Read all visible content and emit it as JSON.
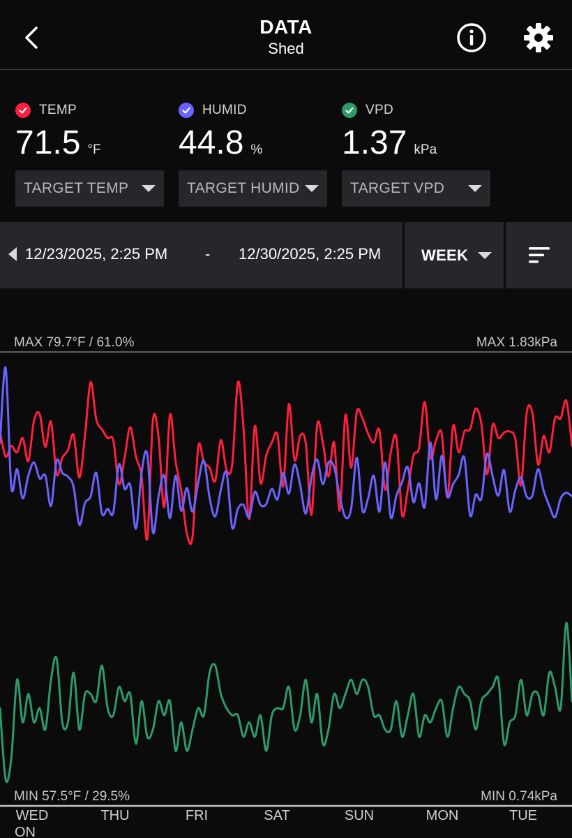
{
  "header": {
    "title": "DATA",
    "subtitle": "Shed",
    "back_icon": "chevron-left-icon",
    "info_icon": "info-icon",
    "settings_icon": "gear-icon"
  },
  "metrics": [
    {
      "label": "TEMP",
      "value": "71.5",
      "unit": "°F",
      "color": "#ff1f3d",
      "checked": true,
      "target_label": "TARGET TEMP"
    },
    {
      "label": "HUMID",
      "value": "44.8",
      "unit": "%",
      "color": "#6b63ff",
      "checked": true,
      "target_label": "TARGET HUMID"
    },
    {
      "label": "VPD",
      "value": "1.37",
      "unit": "kPa",
      "color": "#2e9a6a",
      "checked": true,
      "target_label": "TARGET VPD"
    }
  ],
  "range": {
    "start": "12/23/2025, 2:25 PM",
    "separator": "-",
    "end": "12/30/2025, 2:25 PM",
    "period": "WEEK",
    "sort_icon": "sort-icon"
  },
  "chart_labels": {
    "max_left": "MAX 79.7°F / 61.0%",
    "max_right": "MAX 1.83kPa",
    "min_left": "MIN 57.5°F / 29.5%",
    "min_right": "MIN 0.74kPa"
  },
  "days": [
    "WED",
    "THU",
    "FRI",
    "SAT",
    "SUN",
    "MON",
    "TUE"
  ],
  "day_overflow": "ON",
  "chart_data": {
    "type": "line",
    "x_labels": [
      "WED",
      "THU",
      "FRI",
      "SAT",
      "SUN",
      "MON",
      "TUE"
    ],
    "left_axis": {
      "temp_range_f": [
        57.5,
        79.7
      ],
      "humid_range_pct": [
        29.5,
        61.0
      ]
    },
    "right_axis": {
      "vpd_range_kpa": [
        0.74,
        1.83
      ]
    },
    "series": [
      {
        "name": "TEMP",
        "unit": "°F",
        "color": "#ff1f3d",
        "values": [
          72.8,
          70.5,
          71.5,
          70.9,
          72.2,
          70.1,
          73.8,
          74.4,
          71.4,
          73.7,
          68.9,
          70.4,
          71.1,
          72.5,
          68.6,
          72.4,
          77.3,
          73.9,
          73.0,
          72.2,
          72.0,
          68.0,
          70.4,
          73.2,
          70.5,
          68.7,
          63.0,
          73.8,
          72.3,
          65.9,
          74.3,
          70.1,
          67.4,
          63.5,
          63.2,
          71.4,
          70.0,
          69.5,
          68.3,
          72.0,
          69.3,
          69.8,
          77.3,
          73.1,
          64.8,
          73.3,
          68.1,
          70.6,
          71.8,
          72.5,
          67.8,
          75.3,
          70.2,
          72.4,
          71.7,
          65.2,
          73.4,
          71.8,
          68.7,
          71.8,
          65.6,
          74.3,
          69.5,
          74.6,
          74.0,
          72.6,
          71.8,
          72.9,
          67.5,
          70.9,
          72.2,
          65.2,
          67.5,
          70.6,
          71.3,
          75.5,
          70.4,
          72.0,
          72.6,
          66.8,
          73.3,
          70.9,
          72.8,
          73.0,
          74.9,
          73.5,
          68.9,
          73.4,
          72.2,
          72.7,
          72.8,
          72.1,
          67.9,
          74.5,
          74.5,
          69.8,
          72.4,
          70.9,
          74.0,
          74.0,
          75.6,
          71.5
        ]
      },
      {
        "name": "HUMID",
        "unit": "%",
        "color": "#6b63ff",
        "values": [
          50.5,
          58.4,
          45.8,
          47.7,
          44.6,
          47.0,
          48.4,
          46.7,
          47.0,
          43.8,
          48.6,
          47.3,
          46.9,
          45.8,
          41.8,
          44.1,
          44.8,
          47.3,
          43.0,
          43.5,
          43.1,
          48.2,
          45.6,
          46.0,
          41.4,
          47.3,
          49.3,
          41.0,
          44.8,
          47.0,
          42.5,
          47.0,
          43.3,
          45.7,
          43.2,
          46.3,
          48.6,
          44.7,
          42.7,
          45.5,
          47.3,
          41.5,
          43.5,
          43.9,
          42.6,
          45.3,
          43.9,
          44.0,
          45.6,
          44.5,
          47.3,
          45.1,
          48.2,
          46.0,
          43.0,
          46.8,
          48.7,
          46.1,
          48.4,
          47.9,
          44.8,
          42.6,
          43.5,
          48.9,
          43.3,
          44.6,
          47.0,
          43.2,
          48.4,
          42.6,
          44.9,
          46.3,
          47.9,
          44.2,
          46.2,
          43.7,
          50.5,
          44.5,
          49.1,
          44.8,
          46.1,
          47.1,
          48.9,
          42.8,
          45.0,
          44.6,
          49.3,
          46.9,
          44.9,
          47.6,
          43.2,
          45.5,
          46.8,
          44.8,
          44.9,
          47.7,
          45.4,
          43.8,
          42.6,
          44.6,
          45.2,
          44.8
        ]
      },
      {
        "name": "VPD",
        "unit": "kPa",
        "color": "#2e9a6a",
        "values": [
          1.35,
          1.25,
          1.28,
          1.39,
          1.33,
          1.37,
          1.33,
          1.35,
          1.32,
          1.39,
          1.42,
          1.33,
          1.33,
          1.4,
          1.32,
          1.37,
          1.37,
          1.36,
          1.41,
          1.35,
          1.34,
          1.38,
          1.36,
          1.37,
          1.3,
          1.36,
          1.31,
          1.32,
          1.36,
          1.34,
          1.36,
          1.29,
          1.33,
          1.29,
          1.32,
          1.35,
          1.34,
          1.4,
          1.41,
          1.37,
          1.35,
          1.34,
          1.34,
          1.31,
          1.33,
          1.31,
          1.34,
          1.29,
          1.34,
          1.35,
          1.35,
          1.38,
          1.32,
          1.34,
          1.39,
          1.33,
          1.37,
          1.3,
          1.32,
          1.37,
          1.35,
          1.37,
          1.39,
          1.37,
          1.39,
          1.38,
          1.34,
          1.34,
          1.32,
          1.32,
          1.36,
          1.31,
          1.34,
          1.37,
          1.31,
          1.34,
          1.33,
          1.35,
          1.36,
          1.31,
          1.35,
          1.38,
          1.37,
          1.36,
          1.32,
          1.36,
          1.37,
          1.38,
          1.39,
          1.3,
          1.33,
          1.34,
          1.39,
          1.34,
          1.37,
          1.37,
          1.34,
          1.4,
          1.38,
          1.35,
          1.47,
          1.36
        ]
      }
    ]
  }
}
